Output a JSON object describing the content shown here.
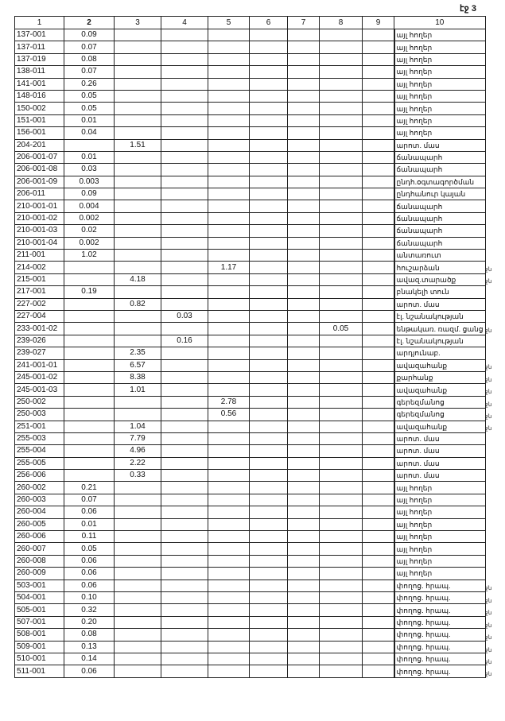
{
  "page_label": "էջ 3",
  "columns": [
    "1",
    "2",
    "3",
    "4",
    "5",
    "6",
    "7",
    "8",
    "9",
    "10"
  ],
  "rows": [
    {
      "c1": "137-001",
      "c2": "0.09",
      "c10": "այլ հողեր"
    },
    {
      "c1": "137-011",
      "c2": "0.07",
      "c10": "այլ հողեր"
    },
    {
      "c1": "137-019",
      "c2": "0.08",
      "c10": "այլ հողեր"
    },
    {
      "c1": "138-011",
      "c2": "0.07",
      "c10": "այլ հողեր"
    },
    {
      "c1": "141-001",
      "c2": "0.26",
      "c10": "այլ հողեր"
    },
    {
      "c1": "148-016",
      "c2": "0.05",
      "c10": "այլ հողեր"
    },
    {
      "c1": "150-002",
      "c2": "0.05",
      "c10": "այլ հողեր"
    },
    {
      "c1": "151-001",
      "c2": "0.01",
      "c10": "այլ հողեր"
    },
    {
      "c1": "156-001",
      "c2": "0.04",
      "c10": "այլ հողեր"
    },
    {
      "c1": "204-201",
      "c3": "1.51",
      "c10": "արոտ. մաս"
    },
    {
      "c1": "206-001-07",
      "c2": "0.01",
      "c10": "ճանապարհ"
    },
    {
      "c1": "206-001-08",
      "c2": "0.03",
      "c10": "ճանապարհ"
    },
    {
      "c1": "206-001-09",
      "c2": "0.003",
      "c10": "ընդհ.օգտագործման"
    },
    {
      "c1": "206-011",
      "c2": "0.09",
      "c10": "ընդհանուր կայան"
    },
    {
      "c1": "210-001-01",
      "c2": "0.004",
      "c10": "ճանապարհ"
    },
    {
      "c1": "210-001-02",
      "c2": "0.002",
      "c10": "ճանապարհ"
    },
    {
      "c1": "210-001-03",
      "c2": "0.02",
      "c10": "ճանապարհ"
    },
    {
      "c1": "210-001-04",
      "c2": "0.002",
      "c10": "ճանապարհ"
    },
    {
      "c1": "211-001",
      "c2": "1.02",
      "c10": "անտառուտ"
    },
    {
      "c1": "214-002",
      "c5": "1.17",
      "c10": "հուշարձան",
      "note": "ջն"
    },
    {
      "c1": "215-001",
      "c3": "4.18",
      "c10": "ավազ.տարածք",
      "note": "ջն"
    },
    {
      "c1": "217-001",
      "c2": "0.19",
      "c10": "բնակելի տուն"
    },
    {
      "c1": "227-002",
      "c3": "0.82",
      "c10": "արոտ. մաս"
    },
    {
      "c1": "227-004",
      "c4": "0.03",
      "c10": "էլ. նշանակության"
    },
    {
      "c1": "233-001-02",
      "c8": "0.05",
      "c10": "ենթակառ. ռազմ. ցանց",
      "note": "ջն"
    },
    {
      "c1": "239-026",
      "c4": "0.16",
      "c10": "էլ. նշանակության"
    },
    {
      "c1": "239-027",
      "c3": "2.35",
      "c10": "արդյունաբ."
    },
    {
      "c1": "241-001-01",
      "c3": "6.57",
      "c10": "ավազահանք",
      "note": "ջն"
    },
    {
      "c1": "245-001-02",
      "c3": "8.38",
      "c10": "քարհանք",
      "note": "ջն"
    },
    {
      "c1": "245-001-03",
      "c3": "1.01",
      "c10": "ավազահանք",
      "note": "ջն"
    },
    {
      "c1": "250-002",
      "c5": "2.78",
      "c10": "գերեզմանոց",
      "note": "ջն"
    },
    {
      "c1": "250-003",
      "c5": "0.56",
      "c10": "գերեզմանոց",
      "note": "ջն"
    },
    {
      "c1": "251-001",
      "c3": "1.04",
      "c10": "ավազահանք",
      "note": "ջն"
    },
    {
      "c1": "255-003",
      "c3": "7.79",
      "c10": "արոտ. մաս"
    },
    {
      "c1": "255-004",
      "c3": "4.96",
      "c10": "արոտ. մաս"
    },
    {
      "c1": "255-005",
      "c3": "2.22",
      "c10": "արոտ. մաս"
    },
    {
      "c1": "256-006",
      "c3": "0.33",
      "c10": "արոտ. մաս"
    },
    {
      "c1": "260-002",
      "c2": "0.21",
      "c10": "այլ հողեր"
    },
    {
      "c1": "260-003",
      "c2": "0.07",
      "c10": "այլ հողեր"
    },
    {
      "c1": "260-004",
      "c2": "0.06",
      "c10": "այլ հողեր"
    },
    {
      "c1": "260-005",
      "c2": "0.01",
      "c10": "այլ հողեր"
    },
    {
      "c1": "260-006",
      "c2": "0.11",
      "c10": "այլ հողեր"
    },
    {
      "c1": "260-007",
      "c2": "0.05",
      "c10": "այլ հողեր"
    },
    {
      "c1": "260-008",
      "c2": "0.06",
      "c10": "այլ հողեր"
    },
    {
      "c1": "260-009",
      "c2": "0.06",
      "c10": "այլ հողեր"
    },
    {
      "c1": "503-001",
      "c2": "0.06",
      "c10": "փողոց. հրապ.",
      "note": "ջն"
    },
    {
      "c1": "504-001",
      "c2": "0.10",
      "c10": "փողոց. հրապ.",
      "note": "ջն"
    },
    {
      "c1": "505-001",
      "c2": "0.32",
      "c10": "փողոց. հրապ.",
      "note": "ջն"
    },
    {
      "c1": "507-001",
      "c2": "0.20",
      "c10": "փողոց. հրապ.",
      "note": "ջն"
    },
    {
      "c1": "508-001",
      "c2": "0.08",
      "c10": "փողոց. հրապ.",
      "note": "ջն"
    },
    {
      "c1": "509-001",
      "c2": "0.13",
      "c10": "փողոց. հրապ.",
      "note": "ջն"
    },
    {
      "c1": "510-001",
      "c2": "0.14",
      "c10": "փողոց. հրապ.",
      "note": "ջն"
    },
    {
      "c1": "511-001",
      "c2": "0.06",
      "c10": "փողոց. հրապ.",
      "note": "ջն"
    }
  ]
}
